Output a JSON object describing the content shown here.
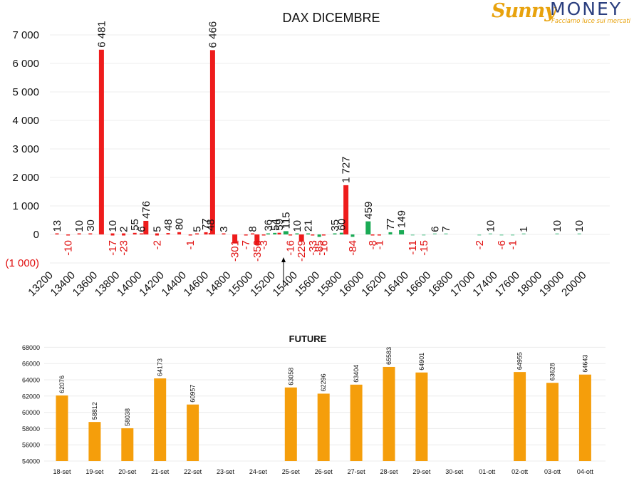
{
  "logo": {
    "sunny": "Sunny",
    "money": "MONEY",
    "tagline": "Facciamo luce sui mercati"
  },
  "colors": {
    "neg_red": "#ee1c1c",
    "pos_green": "#1aaa55",
    "light_green": "#7fd0a8",
    "future_orange": "#f59e0b",
    "label_red": "#e01010"
  },
  "chart_data": [
    {
      "type": "bar",
      "title": "DAX DICEMBRE",
      "ylim": [
        -1000,
        7000
      ],
      "yticks": [
        7000,
        6000,
        5000,
        4000,
        3000,
        2000,
        1000,
        0,
        -1000
      ],
      "ytick_labels": [
        "7 000",
        "6 000",
        "5 000",
        "4 000",
        "3 000",
        "2 000",
        "1 000",
        "0",
        "(1 000)"
      ],
      "grid": true,
      "xtick_labels": [
        "13200",
        "13400",
        "13600",
        "13800",
        "14000",
        "14200",
        "14400",
        "14600",
        "14800",
        "15000",
        "15200",
        "15400",
        "15600",
        "15800",
        "16000",
        "16200",
        "16400",
        "16600",
        "16800",
        "17000",
        "17400",
        "17600",
        "18000",
        "19000",
        "20000"
      ],
      "bars": [
        {
          "i": 0,
          "v": 13,
          "c": "red",
          "l": "13"
        },
        {
          "i": 0.5,
          "v": -10,
          "c": "red",
          "l": "-10"
        },
        {
          "i": 1,
          "v": 10,
          "c": "red",
          "l": "10"
        },
        {
          "i": 1.5,
          "v": 30,
          "c": "red",
          "l": "30"
        },
        {
          "i": 2,
          "v": 6481,
          "c": "red",
          "l": "6 481"
        },
        {
          "i": 2.5,
          "v": 10,
          "c": "red",
          "l": "10"
        },
        {
          "i": 2.5,
          "v": -17,
          "c": "red",
          "l": "-17"
        },
        {
          "i": 3,
          "v": 2,
          "c": "red",
          "l": "2"
        },
        {
          "i": 3,
          "v": -23,
          "c": "red",
          "l": "-23"
        },
        {
          "i": 3.5,
          "v": 55,
          "c": "red",
          "l": "55"
        },
        {
          "i": 3.8,
          "v": 6,
          "c": "red",
          "l": "6"
        },
        {
          "i": 4,
          "v": 476,
          "c": "red",
          "l": "476"
        },
        {
          "i": 4.5,
          "v": 5,
          "c": "red",
          "l": "5"
        },
        {
          "i": 4.5,
          "v": -2,
          "c": "red",
          "l": "-2"
        },
        {
          "i": 5,
          "v": 48,
          "c": "red",
          "l": "48"
        },
        {
          "i": 5.5,
          "v": 80,
          "c": "red",
          "l": "80"
        },
        {
          "i": 6,
          "v": -1,
          "c": "red",
          "l": "-1"
        },
        {
          "i": 6.3,
          "v": 5,
          "c": "red",
          "l": "5"
        },
        {
          "i": 6.7,
          "v": 77,
          "c": "red",
          "l": "77"
        },
        {
          "i": 6.9,
          "v": 48,
          "c": "red",
          "l": "48"
        },
        {
          "i": 7,
          "v": 6466,
          "c": "red",
          "l": "6 466"
        },
        {
          "i": 7.5,
          "v": 3,
          "c": "red",
          "l": "3"
        },
        {
          "i": 8,
          "v": -301,
          "c": "red",
          "l": "-301"
        },
        {
          "i": 8.5,
          "v": -7,
          "c": "red",
          "l": "-7"
        },
        {
          "i": 8.8,
          "v": 8,
          "c": "red",
          "l": "8"
        },
        {
          "i": 9,
          "v": -356,
          "c": "red",
          "l": "-356"
        },
        {
          "i": 9.3,
          "v": -3,
          "c": "red",
          "l": "-3"
        },
        {
          "i": 9.5,
          "v": 36,
          "c": "green",
          "l": "36"
        },
        {
          "i": 9.8,
          "v": 54,
          "c": "green",
          "l": "54"
        },
        {
          "i": 10,
          "v": 59,
          "c": "red",
          "l": "59"
        },
        {
          "i": 10.3,
          "v": 115,
          "c": "green",
          "l": "115"
        },
        {
          "i": 10.5,
          "v": -16,
          "c": "red",
          "l": "-16"
        },
        {
          "i": 10.8,
          "v": 10,
          "c": "green",
          "l": "10"
        },
        {
          "i": 11,
          "v": -229,
          "c": "red",
          "l": "-229"
        },
        {
          "i": 11.3,
          "v": 21,
          "c": "green",
          "l": "21"
        },
        {
          "i": 11.5,
          "v": -33,
          "c": "red",
          "l": "-33"
        },
        {
          "i": 11.8,
          "v": -85,
          "c": "green",
          "l": "-85"
        },
        {
          "i": 12,
          "v": -16,
          "c": "red",
          "l": "-16"
        },
        {
          "i": 12.5,
          "v": 35,
          "c": "green",
          "l": "35"
        },
        {
          "i": 12.8,
          "v": 60,
          "c": "green",
          "l": "60"
        },
        {
          "i": 13,
          "v": 1727,
          "c": "red",
          "l": "1 727"
        },
        {
          "i": 13.3,
          "v": -84,
          "c": "green",
          "l": "-84"
        },
        {
          "i": 14,
          "v": 459,
          "c": "green",
          "l": "459"
        },
        {
          "i": 14.2,
          "v": -8,
          "c": "red",
          "l": "-8"
        },
        {
          "i": 14.5,
          "v": -1,
          "c": "red",
          "l": "-1"
        },
        {
          "i": 15,
          "v": 77,
          "c": "green",
          "l": "77"
        },
        {
          "i": 15.5,
          "v": 149,
          "c": "green",
          "l": "149"
        },
        {
          "i": 16,
          "v": -11,
          "c": "lgreen",
          "l": "-11"
        },
        {
          "i": 16.5,
          "v": -15,
          "c": "lgreen",
          "l": "-15"
        },
        {
          "i": 17,
          "v": 6,
          "c": "lgreen",
          "l": "6"
        },
        {
          "i": 17.5,
          "v": 7,
          "c": "lgreen",
          "l": "7"
        },
        {
          "i": 19,
          "v": -2,
          "c": "lgreen",
          "l": "-2"
        },
        {
          "i": 19.5,
          "v": 10,
          "c": "lgreen",
          "l": "10"
        },
        {
          "i": 20,
          "v": -6,
          "c": "lgreen",
          "l": "-6"
        },
        {
          "i": 20.5,
          "v": -1,
          "c": "lgreen",
          "l": "-1"
        },
        {
          "i": 21,
          "v": 1,
          "c": "lgreen",
          "l": "1"
        },
        {
          "i": 22.5,
          "v": 10,
          "c": "lgreen",
          "l": "10"
        },
        {
          "i": 23.5,
          "v": 10,
          "c": "lgreen",
          "l": "10"
        }
      ]
    },
    {
      "type": "bar",
      "title": "FUTURE",
      "ylim": [
        54000,
        68000
      ],
      "yticks": [
        54000,
        56000,
        58000,
        60000,
        62000,
        64000,
        66000,
        68000
      ],
      "ytick_labels": [
        "54000",
        "56000",
        "58000",
        "60000",
        "62000",
        "64000",
        "66000",
        "68000"
      ],
      "grid": true,
      "categories": [
        "18-set",
        "19-set",
        "20-set",
        "21-set",
        "22-set",
        "23-set",
        "24-set",
        "25-set",
        "26-set",
        "27-set",
        "28-set",
        "29-set",
        "30-set",
        "01-ott",
        "02-ott",
        "03-ott",
        "04-ott"
      ],
      "values": [
        62076,
        58812,
        58038,
        64173,
        60957,
        null,
        null,
        63058,
        62296,
        63404,
        65583,
        64901,
        null,
        null,
        64955,
        63628,
        64643
      ],
      "value_labels": [
        "62076",
        "58812",
        "58038",
        "64173",
        "60957",
        "",
        "",
        "63058",
        "62296",
        "63404",
        "65583",
        "64901",
        "",
        "",
        "64955",
        "63628",
        "64643"
      ]
    }
  ]
}
